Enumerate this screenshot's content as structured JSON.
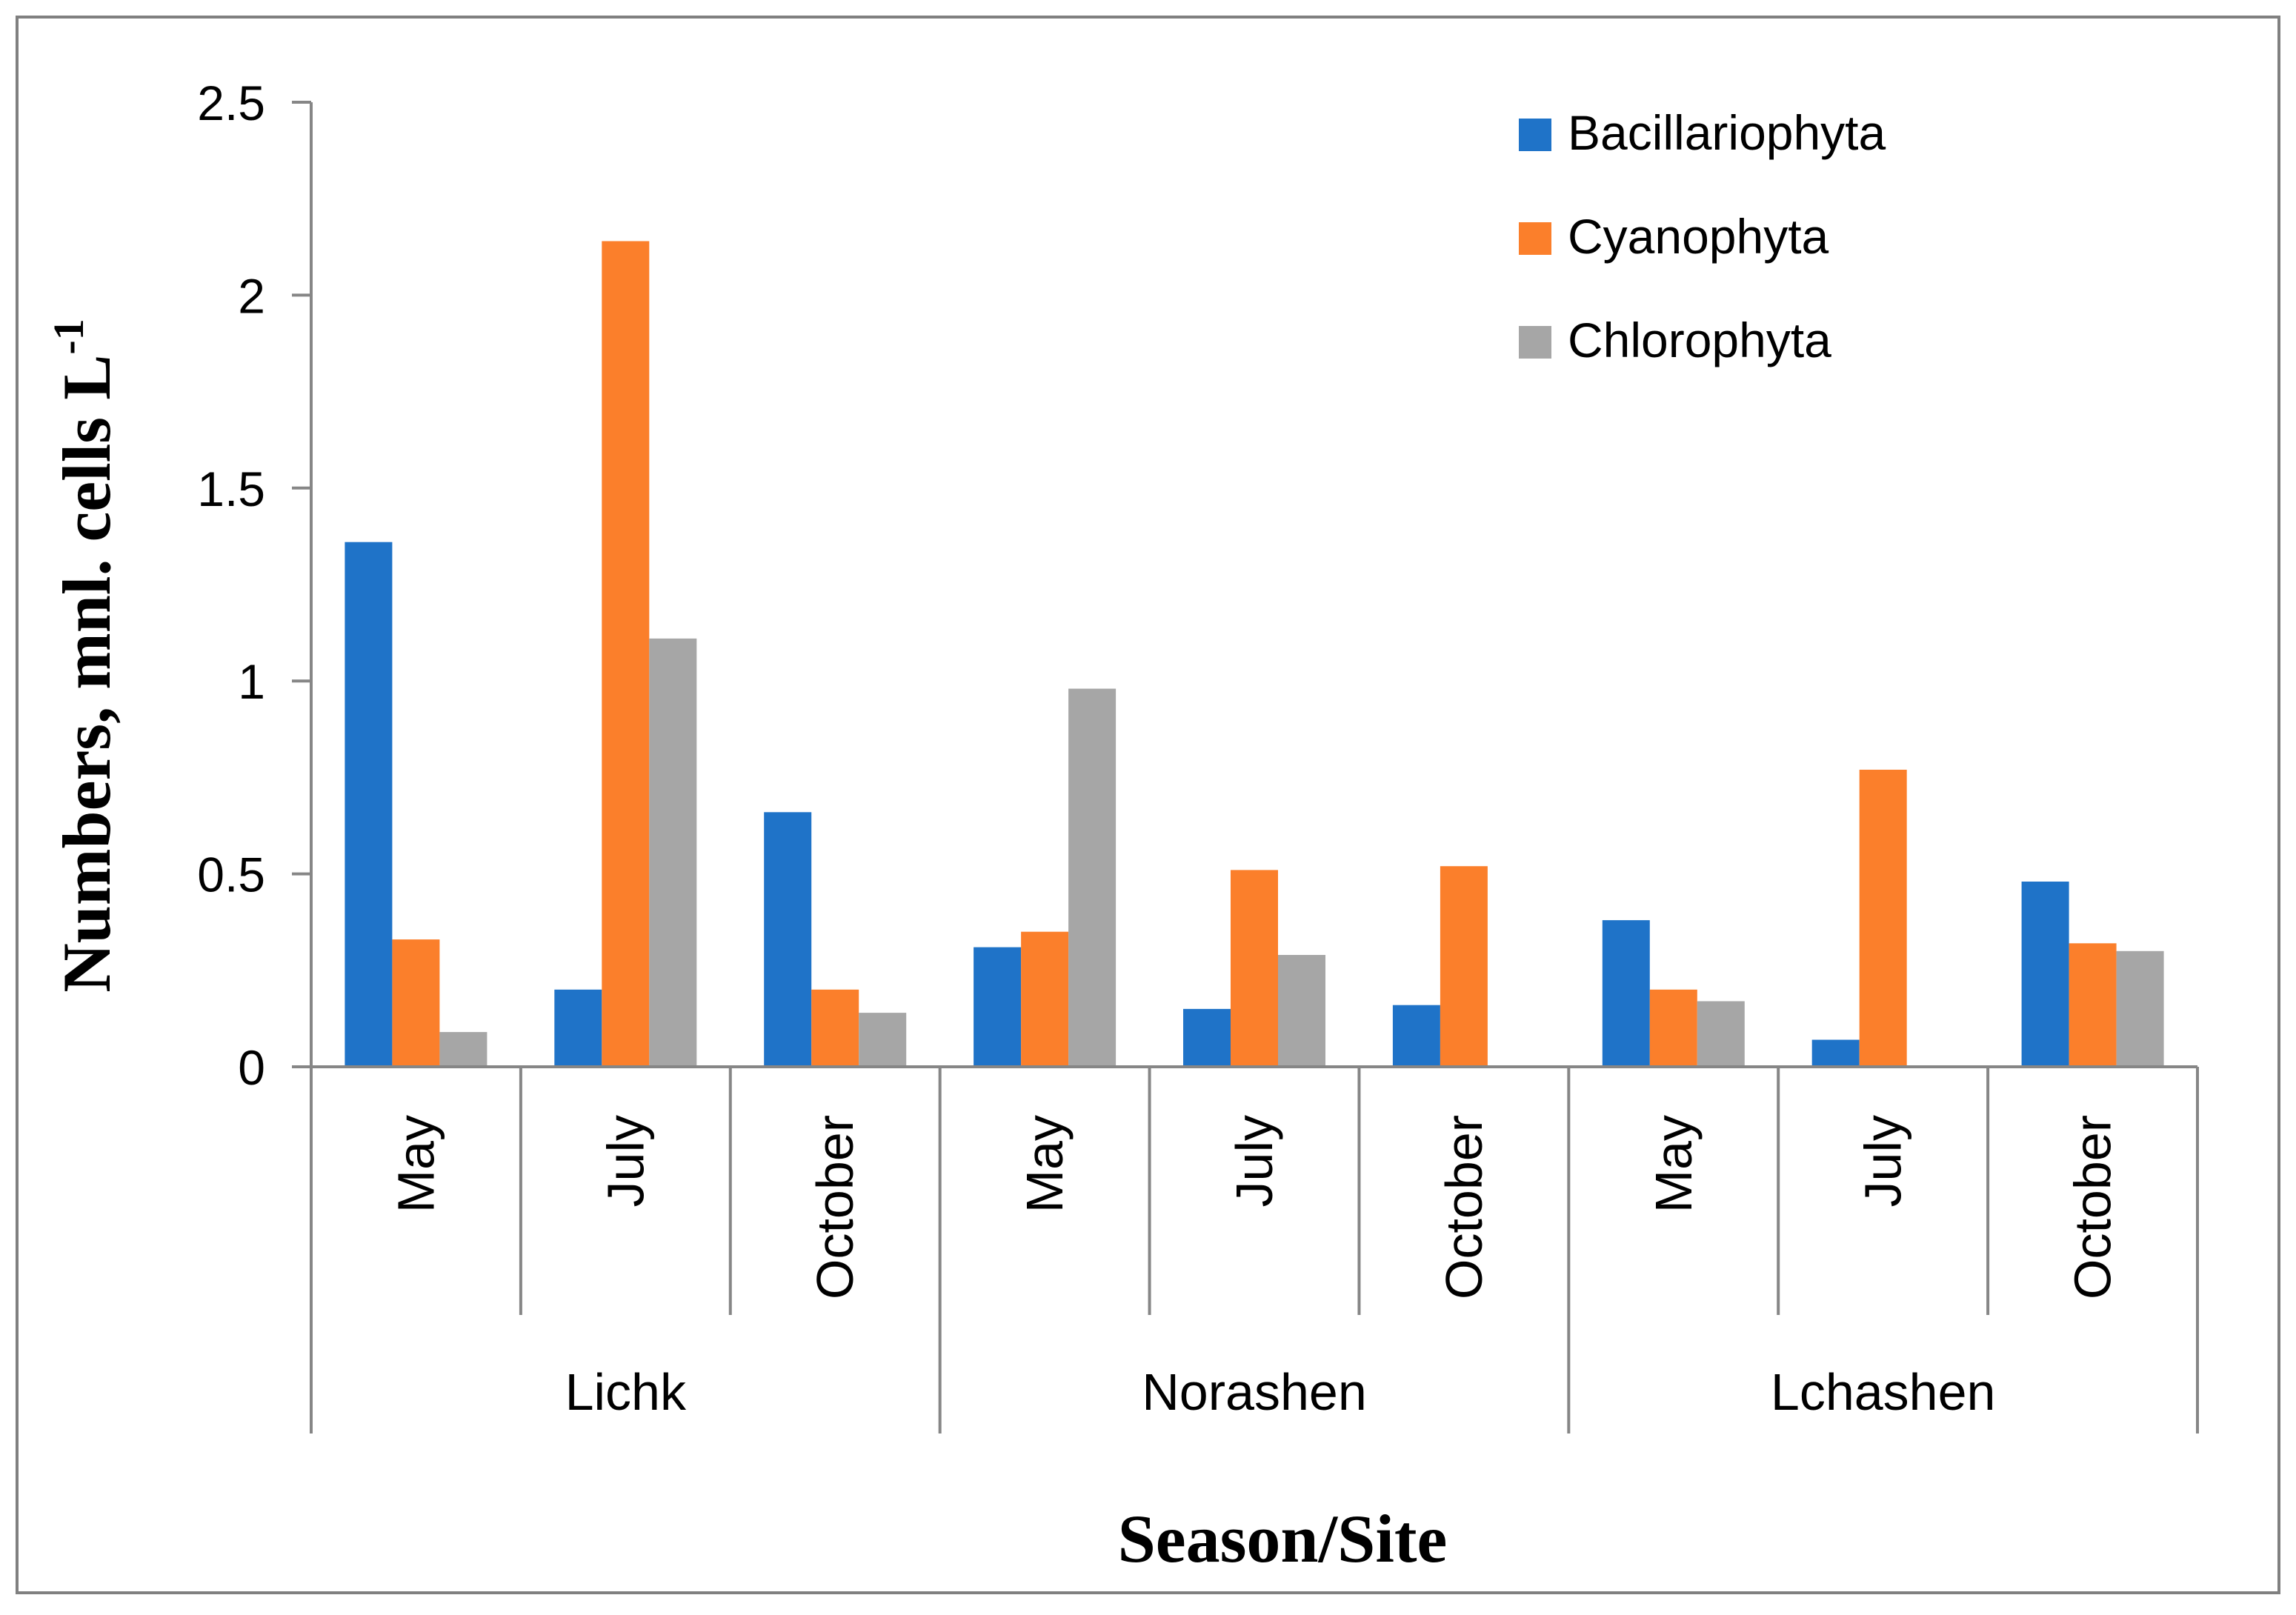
{
  "chart_data": {
    "type": "bar",
    "title": "",
    "xlabel": "Season/Site",
    "ylabel": "Numbers, mnl. cells L",
    "ylabel_superscript": "-1",
    "ylim": [
      0,
      2.5
    ],
    "yticks": [
      "0",
      "0.5",
      "1",
      "1.5",
      "2",
      "2.5"
    ],
    "ytick_values": [
      0,
      0.5,
      1,
      1.5,
      2,
      2.5
    ],
    "grid": false,
    "legend_position": "top-right",
    "groups": [
      {
        "site": "Lichk",
        "months": [
          "May",
          "July",
          "October"
        ]
      },
      {
        "site": "Norashen",
        "months": [
          "May",
          "July",
          "October"
        ]
      },
      {
        "site": "Lchashen",
        "months": [
          "May",
          "July",
          "October"
        ]
      }
    ],
    "series": [
      {
        "name": "Bacillariophyta",
        "color": "#1F73C8",
        "values": [
          1.36,
          0.2,
          0.66,
          0.31,
          0.15,
          0.16,
          0.38,
          0.07,
          0.48
        ]
      },
      {
        "name": "Cyanophyta",
        "color": "#FB7F2B",
        "values": [
          0.33,
          2.14,
          0.2,
          0.35,
          0.51,
          0.52,
          0.2,
          0.77,
          0.32
        ]
      },
      {
        "name": "Chlorophyta",
        "color": "#A6A6A6",
        "values": [
          0.09,
          1.11,
          0.14,
          0.98,
          0.29,
          0,
          0.17,
          0,
          0.3
        ]
      }
    ]
  }
}
